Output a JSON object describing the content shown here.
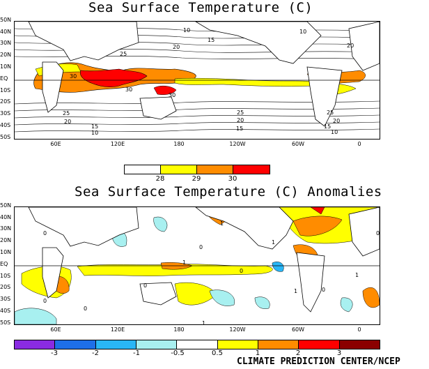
{
  "top_map": {
    "title": "Sea Surface Temperature (C)",
    "lat_labels": [
      "50N",
      "40N",
      "30N",
      "20N",
      "10N",
      "EQ",
      "10S",
      "20S",
      "30S",
      "40S",
      "50S"
    ],
    "lon_labels": [
      "60E",
      "120E",
      "180",
      "120W",
      "60W",
      "0"
    ],
    "contour_labels": [
      "10",
      "15",
      "20",
      "25",
      "30",
      "30",
      "30",
      "25",
      "20",
      "15",
      "10",
      "25",
      "20",
      "15",
      "10",
      "15",
      "20",
      "25",
      "20",
      "10"
    ],
    "colorbar": {
      "labels": [
        "28",
        "29",
        "30"
      ],
      "colors": [
        "#ffffff",
        "#ffff00",
        "#ff8c00",
        "#ff0000"
      ]
    }
  },
  "bottom_map": {
    "title": "Sea Surface Temperature (C) Anomalies",
    "lat_labels": [
      "50N",
      "40N",
      "30N",
      "20N",
      "10N",
      "EQ",
      "10S",
      "20S",
      "30S",
      "40S",
      "50S"
    ],
    "lon_labels": [
      "60E",
      "120E",
      "180",
      "120W",
      "60W",
      "0"
    ],
    "contour_labels": [
      "0",
      "1",
      "0",
      "1",
      "0",
      "1",
      "0",
      "0",
      "1",
      "1",
      "0",
      "0",
      "1",
      "0"
    ],
    "colorbar": {
      "labels": [
        "-3",
        "-2",
        "-1",
        "-0.5",
        "0.5",
        "1",
        "2",
        "3"
      ],
      "colors": [
        "#8a2be2",
        "#1e6fe8",
        "#29b6f6",
        "#a8f0f0",
        "#ffffff",
        "#ffff00",
        "#ff8c00",
        "#ff0000",
        "#8b0000"
      ]
    }
  },
  "credit": "CLIMATE PREDICTION CENTER/NCEP"
}
